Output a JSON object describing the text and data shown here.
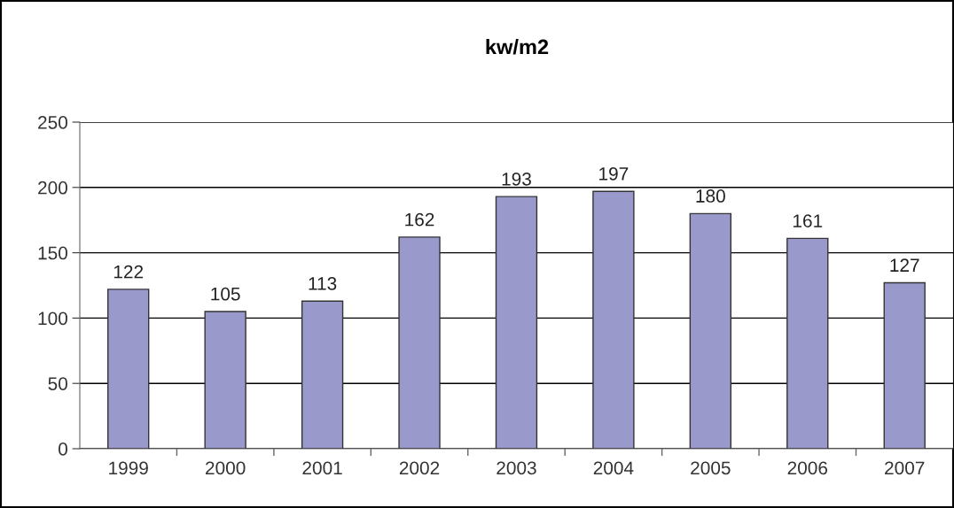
{
  "chart_data": {
    "type": "bar",
    "title": "kw/m2",
    "categories": [
      "1999",
      "2000",
      "2001",
      "2002",
      "2003",
      "2004",
      "2005",
      "2006",
      "2007"
    ],
    "values": [
      122,
      105,
      113,
      162,
      193,
      197,
      180,
      161,
      127
    ],
    "color": "#9999cc",
    "ylim": [
      0,
      250
    ],
    "yticks": [
      0,
      50,
      100,
      150,
      200,
      250
    ],
    "grid": "y",
    "data_labels": true,
    "legend": false
  }
}
